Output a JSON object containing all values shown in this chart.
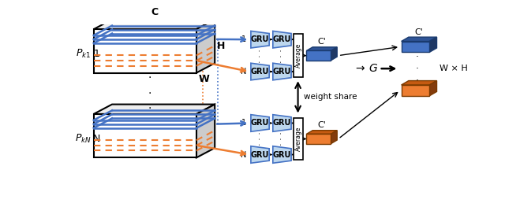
{
  "fig_width": 6.4,
  "fig_height": 2.58,
  "dpi": 100,
  "bg_color": "#ffffff",
  "blue_color": "#4472C4",
  "blue_dark": "#1F3864",
  "blue_mid": "#2F5496",
  "blue_face": "#BDD7EE",
  "orange_color": "#ED7D31",
  "orange_dark": "#843C0C",
  "orange_mid": "#C55A11",
  "black": "#000000",
  "gru_fill": "#BDD7EE",
  "gru_stroke": "#4472C4",
  "avg_fill": "#FFFFFF",
  "avg_stroke": "#000000",
  "C_prime": "C'",
  "G_label": "G",
  "WH_label": "W × H",
  "weight_share": "weight share"
}
